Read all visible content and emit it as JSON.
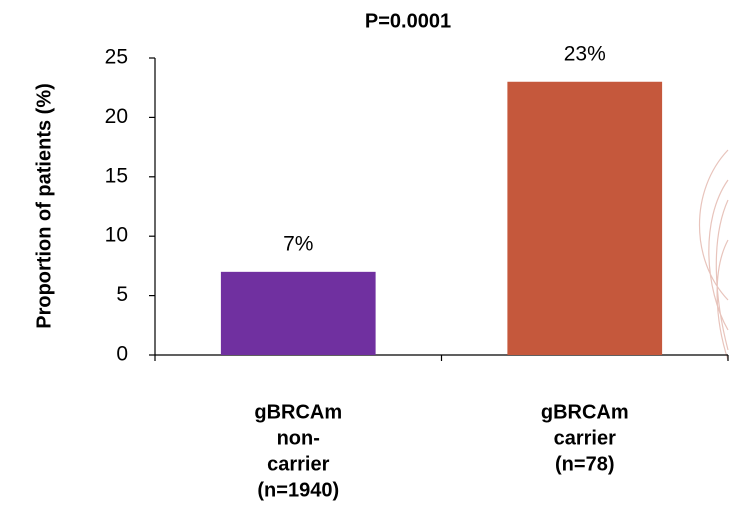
{
  "chart_data": {
    "type": "bar",
    "title": "P=0.0001",
    "ylabel": "Proportion of patients (%)",
    "categories": [
      [
        "gBRCAm",
        "non-",
        "carrier",
        "(n=1940)"
      ],
      [
        "gBRCAm",
        "carrier",
        "(n=78)"
      ]
    ],
    "values": [
      7,
      23
    ],
    "value_labels": [
      "7%",
      "23%"
    ],
    "colors": [
      "#7030a0",
      "#c5583c"
    ],
    "ylim": [
      0,
      25
    ],
    "yticks": [
      0,
      5,
      10,
      15,
      20,
      25
    ],
    "grid": false
  }
}
